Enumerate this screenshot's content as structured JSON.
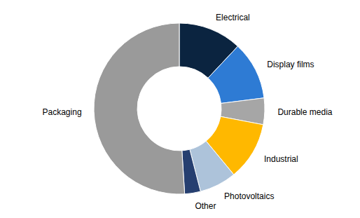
{
  "chart_data": {
    "type": "donut",
    "categories": [
      "Electrical",
      "Display films",
      "Durable media",
      "Industrial",
      "Photovoltaics",
      "Other",
      "Packaging"
    ],
    "values": [
      12,
      11,
      5,
      11,
      7,
      3,
      51
    ],
    "colors": [
      "#0b2440",
      "#2e7bd4",
      "#a6a6a6",
      "#ffb800",
      "#adc3da",
      "#263f70",
      "#9a9a9a"
    ]
  }
}
